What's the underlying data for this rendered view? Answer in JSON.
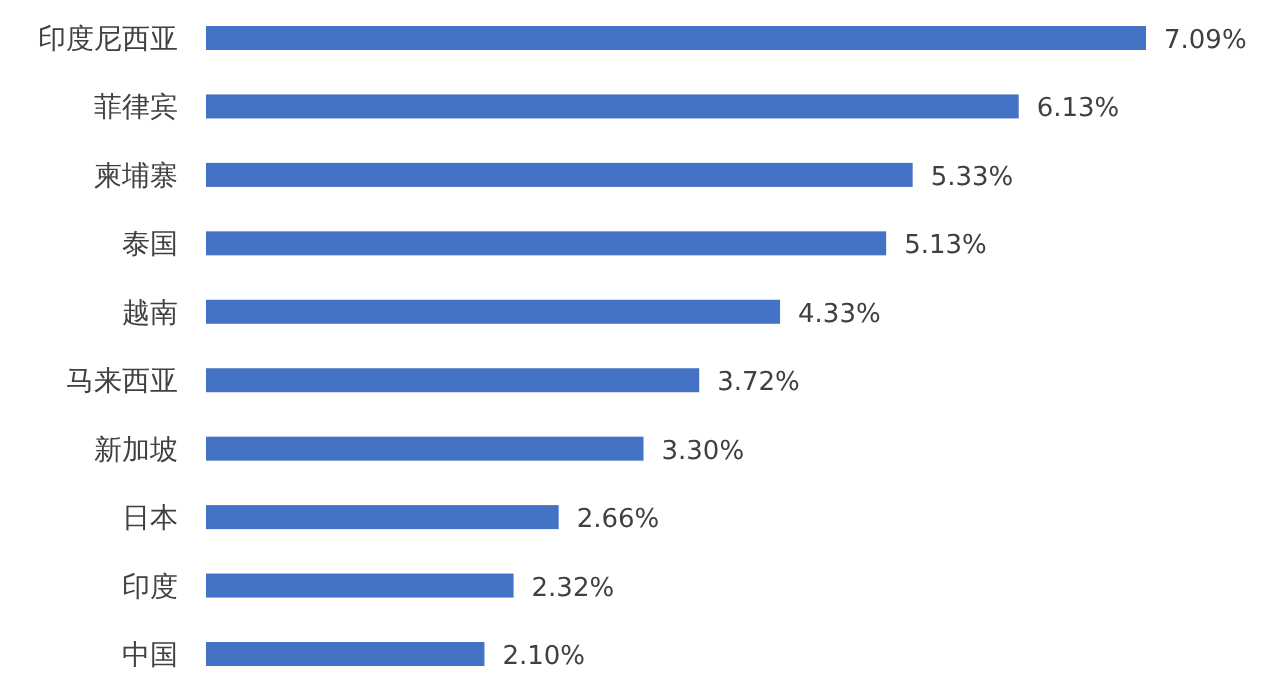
{
  "chart_data": {
    "type": "bar",
    "orientation": "horizontal",
    "categories": [
      "印度尼西亚",
      "菲律宾",
      "柬埔寨",
      "泰国",
      "越南",
      "马来西亚",
      "新加坡",
      "日本",
      "印度",
      "中国"
    ],
    "values": [
      7.09,
      6.13,
      5.33,
      5.13,
      4.33,
      3.72,
      3.3,
      2.66,
      2.32,
      2.1
    ],
    "value_labels": [
      "7.09%",
      "6.13%",
      "5.33%",
      "5.13%",
      "4.33%",
      "3.72%",
      "3.30%",
      "2.66%",
      "2.32%",
      "2.10%"
    ],
    "color": "#4472c4"
  }
}
